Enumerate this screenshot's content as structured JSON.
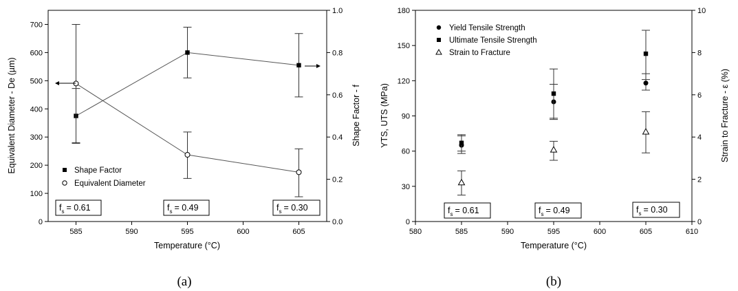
{
  "chart_data": [
    {
      "id": "a",
      "type": "line",
      "caption": "(a)",
      "xlabel": "Temperature (°C)",
      "ylabel": "Equivalent Diameter - De (µm)",
      "y2label": "Shape Factor - f",
      "xlim": [
        582.5,
        607.5
      ],
      "ylim": [
        0,
        750
      ],
      "y2lim": [
        0,
        1.0
      ],
      "xticks": [
        585,
        590,
        595,
        600,
        605
      ],
      "yticks": [
        0,
        100,
        200,
        300,
        400,
        500,
        600,
        700
      ],
      "y2ticks": [
        "0.0",
        "0.2",
        "0.4",
        "0.6",
        "0.8",
        "1.0"
      ],
      "grid": false,
      "legend_position": "bottom-left",
      "series": [
        {
          "name": "Shape Factor",
          "axis": "right",
          "marker": "filled-square",
          "connected": true,
          "x": [
            585,
            595,
            605
          ],
          "y": [
            0.5,
            0.8,
            0.74
          ],
          "err_low": [
            0.37,
            0.68,
            0.59
          ],
          "err_high": [
            0.63,
            0.92,
            0.89
          ]
        },
        {
          "name": "Equivalent Diameter",
          "axis": "left",
          "marker": "open-circle",
          "connected": true,
          "x": [
            585,
            595,
            605
          ],
          "y": [
            490,
            237,
            175
          ],
          "err_low": [
            280,
            153,
            88
          ],
          "err_high": [
            700,
            318,
            258
          ]
        }
      ],
      "annotations": [
        {
          "label": "f",
          "sub": "s",
          "value": "= 0.61"
        },
        {
          "label": "f",
          "sub": "s",
          "value": "= 0.49"
        },
        {
          "label": "f",
          "sub": "s",
          "value": "= 0.30"
        }
      ]
    },
    {
      "id": "b",
      "type": "scatter",
      "caption": "(b)",
      "xlabel": "Temperature (°C)",
      "ylabel": "YTS, UTS (MPa)",
      "y2label": "Strain to Fracture - ε (%)",
      "xlim": [
        580,
        610
      ],
      "ylim": [
        0,
        180
      ],
      "y2lim": [
        0,
        10
      ],
      "xticks": [
        580,
        585,
        590,
        595,
        600,
        605,
        610
      ],
      "yticks": [
        0,
        30,
        60,
        90,
        120,
        150,
        180
      ],
      "y2ticks": [
        0,
        2,
        4,
        6,
        8,
        10
      ],
      "grid": false,
      "legend_position": "top-left",
      "series": [
        {
          "name": "Yield Tensile Strength",
          "axis": "left",
          "marker": "filled-circle",
          "x": [
            585,
            595,
            605
          ],
          "y": [
            65,
            102,
            118
          ],
          "err_low": [
            58,
            88,
            112
          ],
          "err_high": [
            73,
            117,
            126
          ]
        },
        {
          "name": "Ultimate Tensile Strength",
          "axis": "left",
          "marker": "filled-square",
          "x": [
            585,
            595,
            605
          ],
          "y": [
            67,
            109,
            143
          ],
          "err_low": [
            60,
            87,
            121
          ],
          "err_high": [
            74,
            130,
            163
          ]
        },
        {
          "name": "Strain to Fracture",
          "axis": "right",
          "marker": "open-triangle",
          "x": [
            585,
            595,
            605
          ],
          "y": [
            1.85,
            3.4,
            4.25
          ],
          "err_low": [
            1.25,
            2.9,
            3.25
          ],
          "err_high": [
            2.4,
            3.8,
            5.2
          ]
        }
      ],
      "annotations": [
        {
          "label": "f",
          "sub": "s",
          "value": "= 0.61"
        },
        {
          "label": "f",
          "sub": "s",
          "value": "= 0.49"
        },
        {
          "label": "f",
          "sub": "s",
          "value": "= 0.30"
        }
      ]
    }
  ]
}
